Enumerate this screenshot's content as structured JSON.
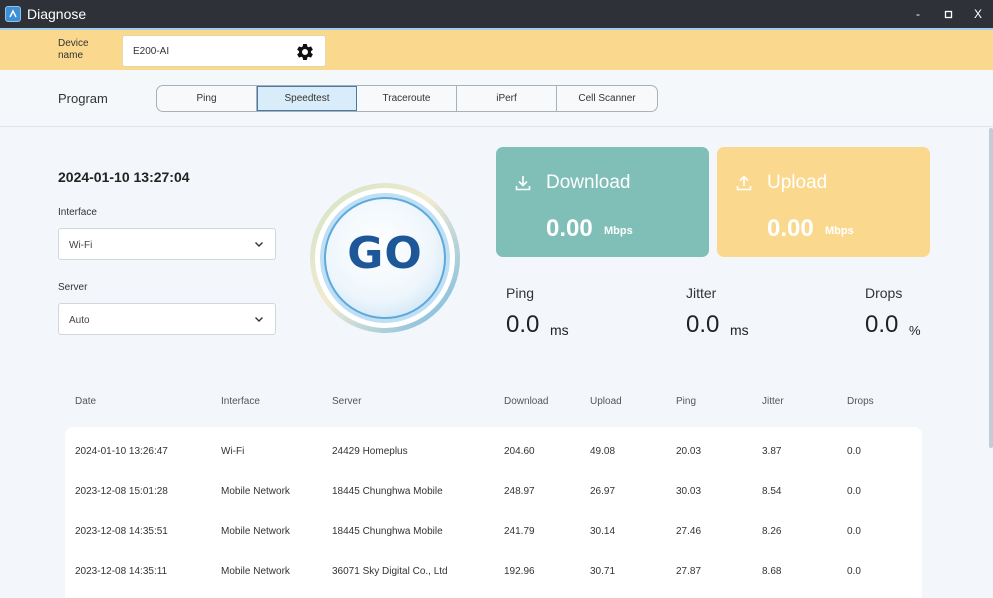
{
  "window": {
    "title": "Diagnose",
    "controls": [
      "-",
      "▫",
      "X"
    ]
  },
  "device": {
    "label": "Device name",
    "value": "E200-AI"
  },
  "program": {
    "label": "Program",
    "tabs": [
      {
        "label": "Ping",
        "active": false
      },
      {
        "label": "Speedtest",
        "active": true
      },
      {
        "label": "Traceroute",
        "active": false
      },
      {
        "label": "iPerf",
        "active": false
      },
      {
        "label": "Cell Scanner",
        "active": false
      }
    ]
  },
  "speedtest": {
    "datetime": "2024-01-10 13:27:04",
    "interface_label": "Interface",
    "interface_value": "Wi-Fi",
    "server_label": "Server",
    "server_value": "Auto",
    "go_label": "GO",
    "download": {
      "title": "Download",
      "value": "0.00",
      "unit": "Mbps"
    },
    "upload": {
      "title": "Upload",
      "value": "0.00",
      "unit": "Mbps"
    },
    "ping": {
      "label": "Ping",
      "value": "0.0",
      "unit": "ms"
    },
    "jitter": {
      "label": "Jitter",
      "value": "0.0",
      "unit": "ms"
    },
    "drops": {
      "label": "Drops",
      "value": "0.0",
      "unit": "%"
    }
  },
  "history": {
    "headers": [
      "Date",
      "Interface",
      "Server",
      "Download",
      "Upload",
      "Ping",
      "Jitter",
      "Drops"
    ],
    "rows": [
      [
        "2024-01-10 13:26:47",
        "Wi-Fi",
        "24429 Homeplus",
        "204.60",
        "49.08",
        "20.03",
        "3.87",
        "0.0"
      ],
      [
        "2023-12-08 15:01:28",
        "Mobile Network",
        "18445 Chunghwa Mobile",
        "248.97",
        "26.97",
        "30.03",
        "8.54",
        "0.0"
      ],
      [
        "2023-12-08 14:35:51",
        "Mobile Network",
        "18445 Chunghwa Mobile",
        "241.79",
        "30.14",
        "27.46",
        "8.26",
        "0.0"
      ],
      [
        "2023-12-08 14:35:11",
        "Mobile Network",
        "36071 Sky Digital Co., Ltd",
        "192.96",
        "30.71",
        "27.87",
        "8.68",
        "0.0"
      ]
    ]
  },
  "colors": {
    "download_card": "#7fbfb7",
    "upload_card": "#fad98f",
    "device_bar": "#fad98f",
    "go_text": "#1d5797"
  }
}
